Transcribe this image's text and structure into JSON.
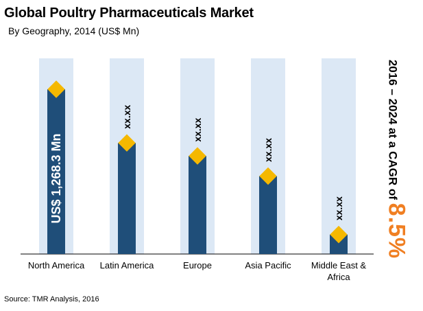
{
  "header": {
    "title": "Global Poultry Pharmaceuticals Market",
    "subtitle": "By Geography, 2014 (US$ Mn)"
  },
  "cagr": {
    "prefix": "2016 – 2024 at a CAGR of ",
    "value": "8.5%"
  },
  "footer": {
    "source": "Source: TMR Analysis, 2016"
  },
  "colors": {
    "bar": "#1f4e79",
    "background_band": "#dce8f5",
    "marker": "#f5b800",
    "accent": "#f07f22"
  },
  "chart_data": {
    "type": "bar",
    "title": "Global Poultry Pharmaceuticals Market",
    "subtitle": "By Geography, 2014 (US$ Mn)",
    "categories": [
      "North America",
      "Latin America",
      "Europe",
      "Asia Pacific",
      "Middle East & Africa"
    ],
    "category_lines": [
      [
        "North America"
      ],
      [
        "Latin America"
      ],
      [
        "Europe"
      ],
      [
        "Asia Pacific"
      ],
      [
        "Middle East &",
        "Africa"
      ]
    ],
    "values": [
      1268.3,
      855,
      755,
      600,
      150
    ],
    "data_labels": [
      "US$ 1,268.3 Mn",
      "xx.xx",
      "xx.xx",
      "xx.xx",
      "xx.xx"
    ],
    "ylim": [
      0,
      1300
    ],
    "grid": false,
    "legend": "none"
  }
}
